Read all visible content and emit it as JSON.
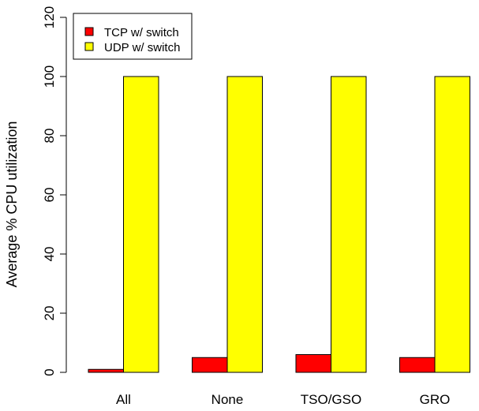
{
  "chart_data": {
    "type": "bar",
    "title": "",
    "xlabel": "",
    "ylabel": "Average % CPU utilization",
    "ylim": [
      0,
      120
    ],
    "yticks": [
      "0",
      "20",
      "40",
      "60",
      "80",
      "100",
      "120"
    ],
    "categories": [
      "All",
      "None",
      "TSO/GSO",
      "GRO"
    ],
    "series": [
      {
        "name": "TCP w/ switch",
        "color": "#ff0000",
        "values": [
          1,
          5,
          6,
          5
        ]
      },
      {
        "name": "UDP w/ switch",
        "color": "#ffff00",
        "values": [
          100,
          100,
          100,
          100
        ]
      }
    ],
    "legend": {
      "placement": "top-left"
    },
    "grid": false
  }
}
